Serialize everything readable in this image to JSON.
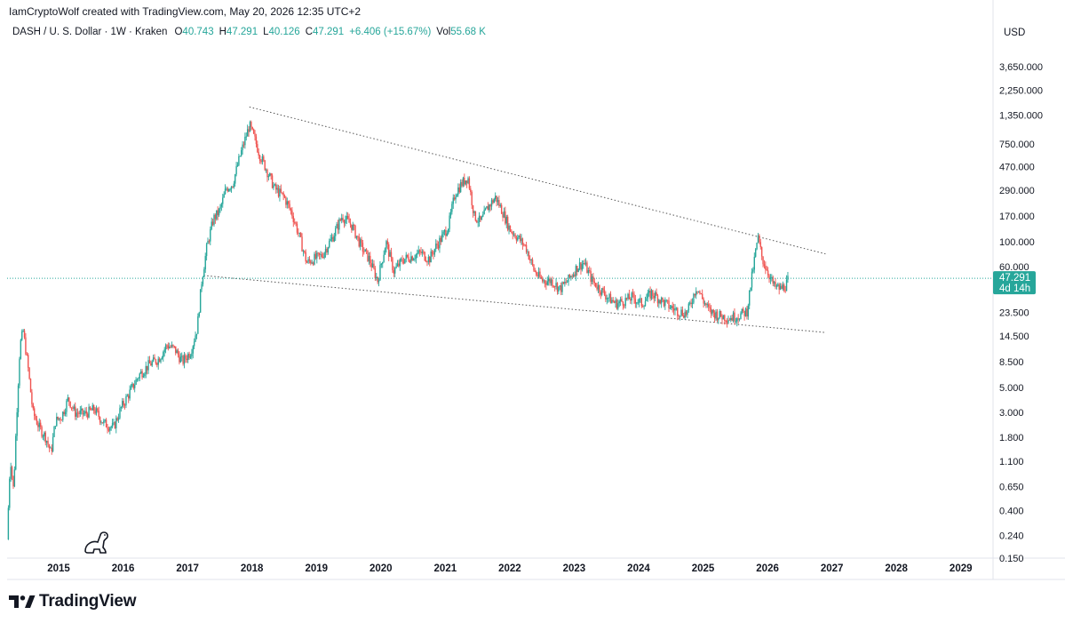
{
  "header": {
    "author_line": "IamCryptoWolf created with TradingView.com, May 20, 2026 12:35 UTC+2"
  },
  "legend": {
    "symbol": "DASH / U. S. Dollar · 1W · Kraken",
    "open_label": "O",
    "open": "40.743",
    "high_label": "H",
    "high": "47.291",
    "low_label": "L",
    "low": "40.126",
    "close_label": "C",
    "close": "47.291",
    "change": "+6.406 (+15.67%)",
    "vol_label": "Vol",
    "vol": "55.68 K"
  },
  "price_axis": {
    "currency": "USD",
    "current_price": "47.291",
    "countdown": "4d 14h"
  },
  "brand": {
    "name": "TradingView"
  },
  "colors": {
    "up": "#26a69a",
    "down": "#ef5350",
    "price_tag": "#26a69a",
    "trendline": "#555555"
  },
  "chart_data": {
    "type": "candlestick",
    "title": "",
    "xlabel": "",
    "ylabel": "",
    "scale": "log",
    "ylim": [
      0.15,
      6000
    ],
    "y_ticks": [
      "0.150",
      "0.240",
      "0.400",
      "0.650",
      "1.100",
      "1.800",
      "3.000",
      "5.000",
      "8.500",
      "14.500",
      "23.500",
      "60.000",
      "100.000",
      "170.000",
      "290.000",
      "470.000",
      "750.000",
      "1,350.000",
      "2,250.000",
      "3,650.000"
    ],
    "x_ticks": [
      "2015",
      "2016",
      "2017",
      "2018",
      "2019",
      "2020",
      "2021",
      "2022",
      "2023",
      "2024",
      "2025",
      "2026",
      "2027",
      "2028",
      "2029"
    ],
    "xlim": [
      2014.2,
      2029.5
    ],
    "current_price": 47.291,
    "price_path": [
      [
        2014.2,
        0.22
      ],
      [
        2014.25,
        1.2
      ],
      [
        2014.3,
        0.6
      ],
      [
        2014.35,
        3.0
      ],
      [
        2014.4,
        12
      ],
      [
        2014.45,
        16
      ],
      [
        2014.52,
        8
      ],
      [
        2014.6,
        3
      ],
      [
        2014.7,
        2.2
      ],
      [
        2014.8,
        1.8
      ],
      [
        2014.88,
        1.3
      ],
      [
        2014.95,
        2.5
      ],
      [
        2015.05,
        2.8
      ],
      [
        2015.15,
        4.0
      ],
      [
        2015.25,
        3.0
      ],
      [
        2015.4,
        2.9
      ],
      [
        2015.55,
        3.2
      ],
      [
        2015.7,
        2.4
      ],
      [
        2015.85,
        2.2
      ],
      [
        2015.97,
        3.3
      ],
      [
        2016.1,
        4.5
      ],
      [
        2016.25,
        6.5
      ],
      [
        2016.4,
        8.0
      ],
      [
        2016.55,
        9.0
      ],
      [
        2016.68,
        12.0
      ],
      [
        2016.8,
        11.0
      ],
      [
        2016.92,
        8.5
      ],
      [
        2017.05,
        10.5
      ],
      [
        2017.15,
        17.0
      ],
      [
        2017.22,
        45.0
      ],
      [
        2017.3,
        90.0
      ],
      [
        2017.4,
        160.0
      ],
      [
        2017.5,
        190.0
      ],
      [
        2017.6,
        300.0
      ],
      [
        2017.7,
        330.0
      ],
      [
        2017.82,
        600.0
      ],
      [
        2017.96,
        1100.0
      ],
      [
        2018.05,
        800.0
      ],
      [
        2018.12,
        600.0
      ],
      [
        2018.22,
        450.0
      ],
      [
        2018.35,
        300.0
      ],
      [
        2018.5,
        250.0
      ],
      [
        2018.62,
        180.0
      ],
      [
        2018.72,
        120.0
      ],
      [
        2018.85,
        65.0
      ],
      [
        2018.95,
        70.0
      ],
      [
        2019.08,
        75.0
      ],
      [
        2019.25,
        110.0
      ],
      [
        2019.4,
        170.0
      ],
      [
        2019.55,
        140.0
      ],
      [
        2019.7,
        90.0
      ],
      [
        2019.82,
        70.0
      ],
      [
        2019.95,
        45.0
      ],
      [
        2020.08,
        100.0
      ],
      [
        2020.2,
        55.0
      ],
      [
        2020.35,
        70.0
      ],
      [
        2020.5,
        75.0
      ],
      [
        2020.62,
        80.0
      ],
      [
        2020.75,
        70.0
      ],
      [
        2020.85,
        90.0
      ],
      [
        2020.95,
        110.0
      ],
      [
        2021.05,
        140.0
      ],
      [
        2021.15,
        270.0
      ],
      [
        2021.25,
        330.0
      ],
      [
        2021.35,
        380.0
      ],
      [
        2021.45,
        170.0
      ],
      [
        2021.55,
        150.0
      ],
      [
        2021.65,
        200.0
      ],
      [
        2021.78,
        250.0
      ],
      [
        2021.9,
        180.0
      ],
      [
        2022.0,
        130.0
      ],
      [
        2022.12,
        110.0
      ],
      [
        2022.25,
        90.0
      ],
      [
        2022.38,
        55.0
      ],
      [
        2022.5,
        45.0
      ],
      [
        2022.65,
        45.0
      ],
      [
        2022.78,
        38.0
      ],
      [
        2022.9,
        45.0
      ],
      [
        2023.05,
        60.0
      ],
      [
        2023.15,
        65.0
      ],
      [
        2023.28,
        45.0
      ],
      [
        2023.4,
        38.0
      ],
      [
        2023.52,
        32.0
      ],
      [
        2023.65,
        28.0
      ],
      [
        2023.78,
        30.0
      ],
      [
        2023.9,
        32.0
      ],
      [
        2024.05,
        28.0
      ],
      [
        2024.2,
        35.0
      ],
      [
        2024.35,
        30.0
      ],
      [
        2024.5,
        26.0
      ],
      [
        2024.62,
        24.0
      ],
      [
        2024.75,
        23.0
      ],
      [
        2024.9,
        40.0
      ],
      [
        2025.0,
        30.0
      ],
      [
        2025.1,
        24.0
      ],
      [
        2025.25,
        22.0
      ],
      [
        2025.4,
        21.0
      ],
      [
        2025.55,
        22.0
      ],
      [
        2025.68,
        24.0
      ],
      [
        2025.78,
        60.0
      ],
      [
        2025.85,
        110.0
      ],
      [
        2025.92,
        70.0
      ],
      [
        2026.0,
        55.0
      ],
      [
        2026.1,
        40.0
      ],
      [
        2026.2,
        38.0
      ],
      [
        2026.28,
        40.743
      ],
      [
        2026.33,
        47.291
      ]
    ],
    "upper_trendline": [
      [
        2017.96,
        1600.0
      ],
      [
        2026.9,
        78.0
      ]
    ],
    "lower_trendline": [
      [
        2017.25,
        50.0
      ],
      [
        2026.9,
        15.5
      ]
    ]
  }
}
